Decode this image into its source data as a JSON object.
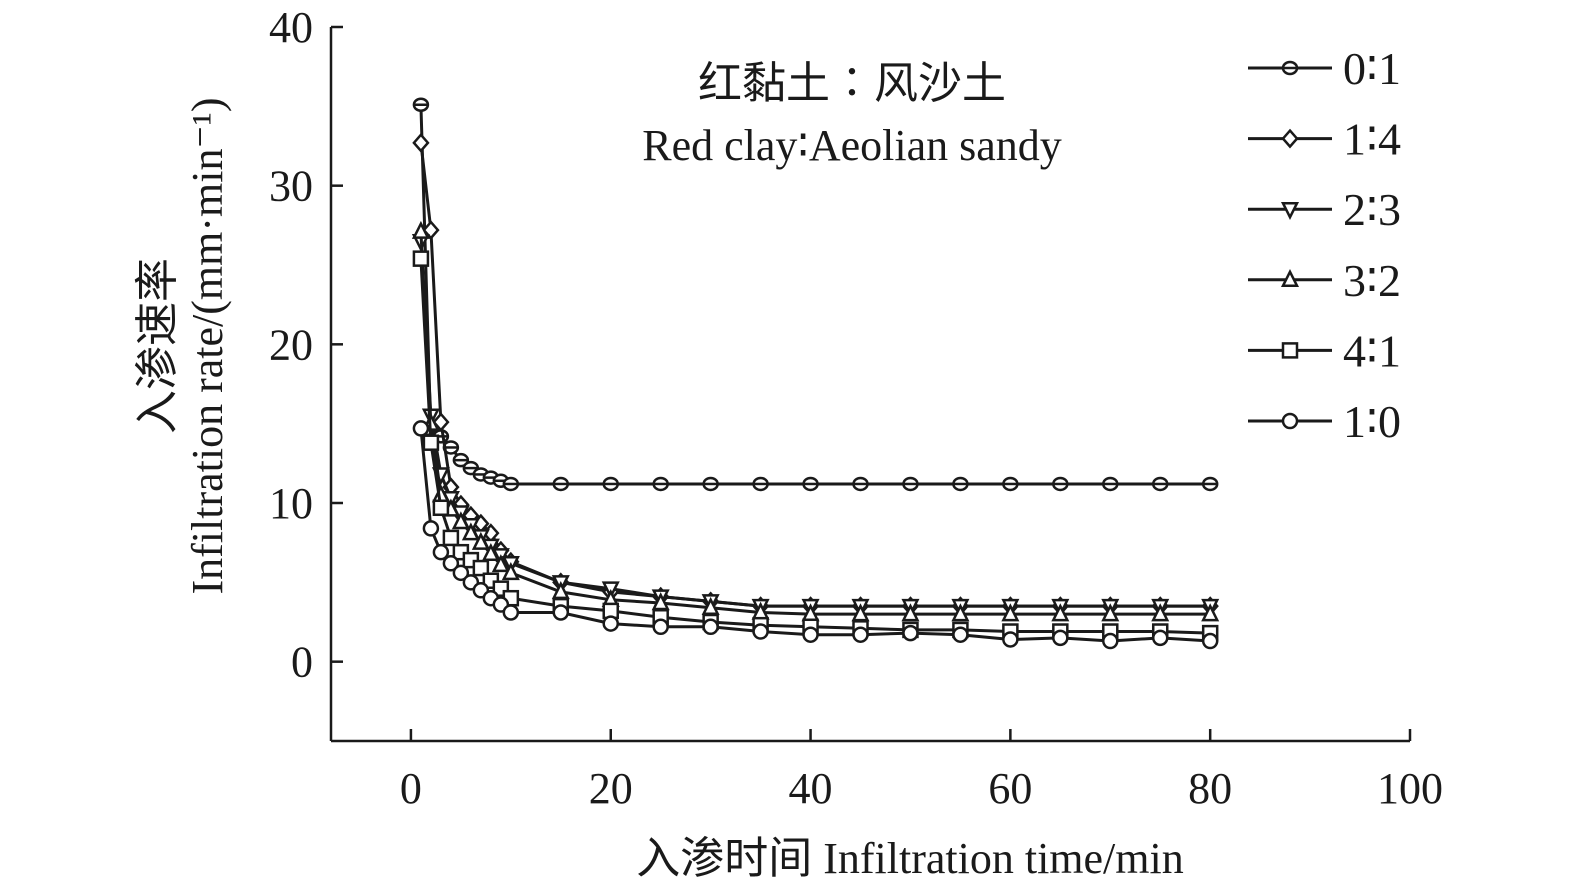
{
  "chart_data": {
    "type": "line",
    "title": "",
    "annotation": {
      "line1": "红黏土∶风沙土",
      "line2": "Red clay∶Aeolian sandy"
    },
    "xlabel": "入渗时间 Infiltration time/min",
    "ylabel_cn": "入渗速率",
    "ylabel_en": "Infiltration rate/(mm·min⁻¹)",
    "xlim": [
      -8,
      100
    ],
    "ylim": [
      -5,
      40
    ],
    "xticks": [
      0,
      20,
      40,
      60,
      80,
      100
    ],
    "yticks": [
      0,
      10,
      20,
      30,
      40
    ],
    "xtick_labels": [
      "0",
      "20",
      "40",
      "60",
      "80",
      "100"
    ],
    "ytick_labels": [
      "0",
      "10",
      "20",
      "30",
      "40"
    ],
    "legend_position": "right",
    "grid": false,
    "x": [
      1,
      2,
      3,
      4,
      5,
      6,
      7,
      8,
      9,
      10,
      15,
      20,
      25,
      30,
      35,
      40,
      45,
      50,
      55,
      60,
      65,
      70,
      75,
      80
    ],
    "series": [
      {
        "name": "0∶1",
        "marker": "hexagon",
        "values": [
          35.1,
          14.3,
          14.2,
          13.5,
          12.7,
          12.2,
          11.8,
          11.6,
          11.4,
          11.2,
          11.2,
          11.2,
          11.2,
          11.2,
          11.2,
          11.2,
          11.2,
          11.2,
          11.2,
          11.2,
          11.2,
          11.2,
          11.2,
          11.2
        ]
      },
      {
        "name": "1∶4",
        "marker": "diamond",
        "values": [
          32.7,
          27.2,
          15.1,
          11.0,
          9.9,
          9.2,
          8.7,
          8.1,
          7.0,
          6.3,
          5.0,
          4.4,
          4.1,
          3.8,
          3.5,
          3.5,
          3.5,
          3.5,
          3.5,
          3.5,
          3.5,
          3.5,
          3.5,
          3.5
        ]
      },
      {
        "name": "2∶3",
        "marker": "triangle-down",
        "values": [
          26.5,
          15.5,
          11.8,
          10.3,
          9.4,
          8.6,
          7.9,
          7.3,
          6.7,
          6.2,
          5.0,
          4.6,
          4.1,
          3.8,
          3.5,
          3.5,
          3.5,
          3.5,
          3.5,
          3.5,
          3.5,
          3.5,
          3.5,
          3.5
        ]
      },
      {
        "name": "3∶2",
        "marker": "triangle-up",
        "values": [
          27.1,
          15.0,
          10.5,
          9.6,
          8.8,
          8.1,
          7.5,
          6.8,
          6.1,
          5.6,
          4.4,
          3.9,
          3.7,
          3.4,
          3.1,
          3.0,
          3.0,
          3.0,
          3.0,
          3.0,
          3.0,
          3.0,
          3.0,
          3.0
        ]
      },
      {
        "name": "4∶1",
        "marker": "square",
        "values": [
          25.4,
          13.8,
          9.7,
          7.8,
          6.9,
          6.4,
          5.9,
          5.1,
          4.6,
          4.0,
          3.5,
          3.2,
          2.8,
          2.5,
          2.3,
          2.2,
          2.1,
          2.0,
          2.0,
          1.9,
          1.9,
          1.9,
          1.9,
          1.8
        ]
      },
      {
        "name": "1∶0",
        "marker": "circle",
        "values": [
          14.7,
          8.4,
          6.9,
          6.2,
          5.6,
          5.0,
          4.5,
          4.0,
          3.6,
          3.1,
          3.1,
          2.4,
          2.2,
          2.2,
          1.9,
          1.7,
          1.7,
          1.8,
          1.7,
          1.4,
          1.5,
          1.3,
          1.5,
          1.3
        ]
      }
    ]
  }
}
